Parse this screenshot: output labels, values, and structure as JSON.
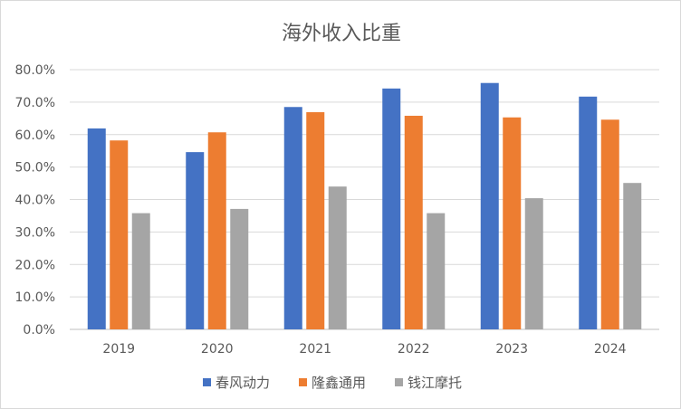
{
  "chart_data": {
    "type": "bar",
    "title": "海外收入比重",
    "categories": [
      "2019",
      "2020",
      "2021",
      "2022",
      "2023",
      "2024"
    ],
    "series": [
      {
        "name": "春风动力",
        "color": "#4472C4",
        "values": [
          61.9,
          54.6,
          68.5,
          74.2,
          75.9,
          71.7
        ]
      },
      {
        "name": "隆鑫通用",
        "color": "#ED7D31",
        "values": [
          58.2,
          60.7,
          66.9,
          65.8,
          65.3,
          64.6
        ]
      },
      {
        "name": "钱江摩托",
        "color": "#A5A5A5",
        "values": [
          35.8,
          37.1,
          44.0,
          35.8,
          40.4,
          45.1
        ]
      }
    ],
    "ylim": [
      0,
      80
    ],
    "yticks": [
      "0.0%",
      "10.0%",
      "20.0%",
      "30.0%",
      "40.0%",
      "50.0%",
      "60.0%",
      "70.0%",
      "80.0%"
    ],
    "grid": true,
    "legend_position": "bottom"
  }
}
